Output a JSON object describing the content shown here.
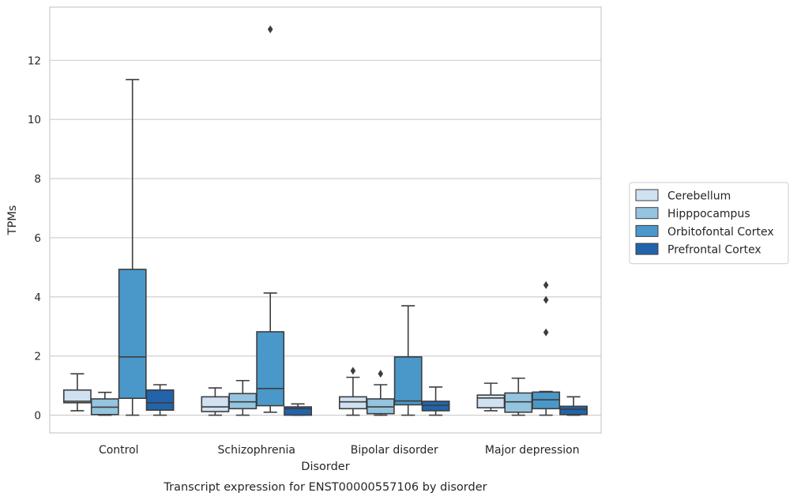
{
  "chart_data": {
    "type": "box",
    "caption": "Transcript expression for ENST00000557106 by disorder",
    "xlabel": "Disorder",
    "ylabel": "TPMs",
    "ylim": [
      -0.6,
      13.8
    ],
    "yticks": [
      0,
      2,
      4,
      6,
      8,
      10,
      12
    ],
    "grid": "horizontal",
    "legend_position": "right",
    "categories": [
      "Control",
      "Schizophrenia",
      "Bipolar disorder",
      "Major depression"
    ],
    "series": [
      {
        "name": "Cerebellum",
        "color": "#d0e1f2",
        "boxes": [
          {
            "whisker_low": 0.15,
            "q1": 0.42,
            "median": 0.47,
            "q3": 0.85,
            "whisker_high": 1.4,
            "outliers": []
          },
          {
            "whisker_low": 0.0,
            "q1": 0.12,
            "median": 0.28,
            "q3": 0.62,
            "whisker_high": 0.92,
            "outliers": []
          },
          {
            "whisker_low": 0.0,
            "q1": 0.22,
            "median": 0.45,
            "q3": 0.62,
            "whisker_high": 1.28,
            "outliers": [
              1.5
            ]
          },
          {
            "whisker_low": 0.15,
            "q1": 0.25,
            "median": 0.58,
            "q3": 0.68,
            "whisker_high": 1.08,
            "outliers": []
          }
        ]
      },
      {
        "name": "Hipppocampus",
        "color": "#94c4df",
        "boxes": [
          {
            "whisker_low": 0.0,
            "q1": 0.02,
            "median": 0.27,
            "q3": 0.55,
            "whisker_high": 0.77,
            "outliers": []
          },
          {
            "whisker_low": 0.0,
            "q1": 0.22,
            "median": 0.45,
            "q3": 0.73,
            "whisker_high": 1.17,
            "outliers": []
          },
          {
            "whisker_low": 0.0,
            "q1": 0.05,
            "median": 0.28,
            "q3": 0.55,
            "whisker_high": 1.03,
            "outliers": [
              1.4
            ]
          },
          {
            "whisker_low": 0.0,
            "q1": 0.1,
            "median": 0.45,
            "q3": 0.75,
            "whisker_high": 1.25,
            "outliers": []
          }
        ]
      },
      {
        "name": "Orbitofontal Cortex",
        "color": "#4a98c9",
        "boxes": [
          {
            "whisker_low": 0.0,
            "q1": 0.57,
            "median": 1.97,
            "q3": 4.93,
            "whisker_high": 11.35,
            "outliers": []
          },
          {
            "whisker_low": 0.1,
            "q1": 0.32,
            "median": 0.9,
            "q3": 2.82,
            "whisker_high": 4.13,
            "outliers": [
              13.05
            ]
          },
          {
            "whisker_low": 0.0,
            "q1": 0.35,
            "median": 0.48,
            "q3": 1.97,
            "whisker_high": 3.7,
            "outliers": []
          },
          {
            "whisker_low": 0.0,
            "q1": 0.22,
            "median": 0.52,
            "q3": 0.78,
            "whisker_high": 0.8,
            "outliers": [
              4.4,
              3.9,
              2.8
            ]
          }
        ]
      },
      {
        "name": "Prefrontal Cortex",
        "color": "#2164ab",
        "boxes": [
          {
            "whisker_low": 0.0,
            "q1": 0.17,
            "median": 0.42,
            "q3": 0.85,
            "whisker_high": 1.03,
            "outliers": []
          },
          {
            "whisker_low": 0.0,
            "q1": 0.0,
            "median": 0.22,
            "q3": 0.28,
            "whisker_high": 0.38,
            "outliers": []
          },
          {
            "whisker_low": 0.0,
            "q1": 0.15,
            "median": 0.33,
            "q3": 0.47,
            "whisker_high": 0.95,
            "outliers": []
          },
          {
            "whisker_low": 0.0,
            "q1": 0.02,
            "median": 0.2,
            "q3": 0.3,
            "whisker_high": 0.62,
            "outliers": []
          }
        ]
      }
    ]
  }
}
